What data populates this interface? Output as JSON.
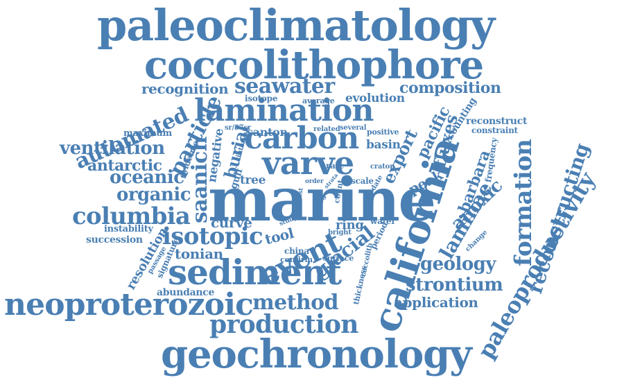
{
  "color": "#4a7fb3",
  "words": [
    "paleoclimatology",
    "coccolithophore",
    "lamination",
    "marine",
    "california",
    "sediment",
    "varve",
    "carbon",
    "geochronology",
    "neoproterozoic",
    "paleoproductivity",
    "production",
    "method",
    "event",
    "isotopic",
    "columbia",
    "formation",
    "reconstructing",
    "seawater",
    "recognition",
    "composition",
    "automated",
    "particle",
    "ventilation",
    "saanich",
    "oceanic",
    "antarctic",
    "organic",
    "strontium",
    "geology",
    "application",
    "laminae",
    "anoxic",
    "glacial",
    "fluxes",
    "pacific",
    "export",
    "barbara",
    "evolution",
    "reconstruct",
    "constraint",
    "counting",
    "basin",
    "santon",
    "burial",
    "negative",
    "curve",
    "tonian",
    "resolution",
    "abundance",
    "succession",
    "instability",
    "tool",
    "ring",
    "peak",
    "frequency",
    "isotope",
    "average",
    "maximum",
    "evidence",
    "gulf",
    "tree",
    "interval",
    "sr/87sr",
    "related",
    "several",
    "positive",
    "rate",
    "craton",
    "scale",
    "date",
    "strata",
    "site",
    "last",
    "order",
    "study",
    "count",
    "bright",
    "water",
    "period",
    "china",
    "confirm",
    "surface",
    "coccolith",
    "thickness",
    "change",
    "signature",
    "passage"
  ]
}
